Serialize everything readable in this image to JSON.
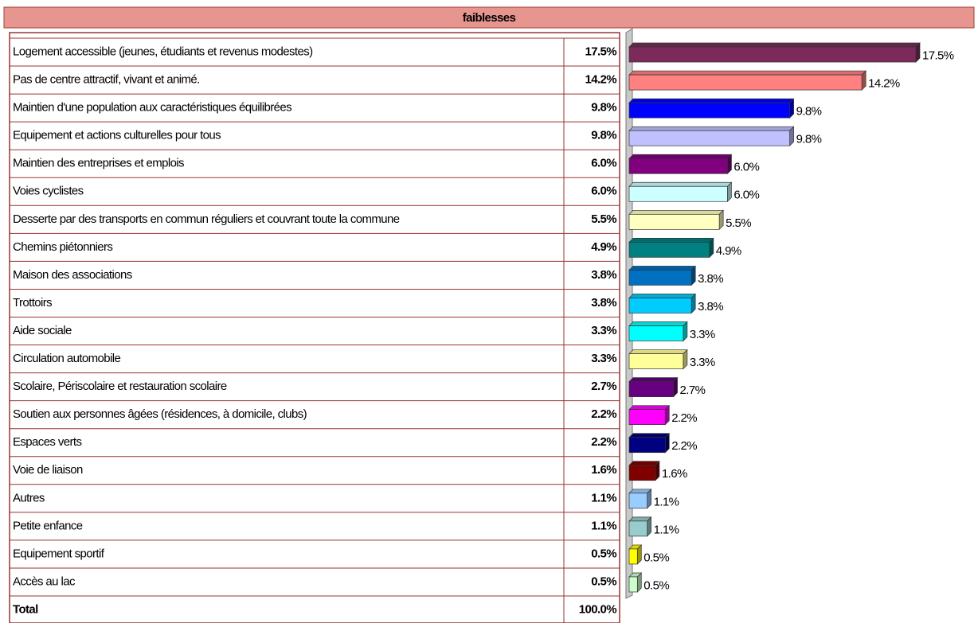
{
  "chart_data": {
    "type": "bar",
    "orientation": "horizontal",
    "title": "faiblesses",
    "categories": [
      "Logement accessible (jeunes, étudiants et revenus modestes)",
      "Pas de  centre attractif, vivant et animé.",
      "Maintien d'une population aux caractéristiques équilibrées",
      "Equipement et actions culturelles pour tous",
      "Maintien des entreprises et emplois",
      "Voies cyclistes",
      "Desserte par des transports en commun réguliers et couvrant toute la commune",
      "Chemins piétonniers",
      "Maison des associations",
      "Trottoirs",
      "Aide sociale",
      "Circulation automobile",
      "Scolaire, Périscolaire et restauration scolaire",
      "Soutien aux personnes âgées (résidences, à domicile, clubs)",
      "Espaces verts",
      "Voie de liaison",
      "Autres",
      "Petite enfance",
      "Equipement sportif",
      "Accès au lac"
    ],
    "values": [
      17.5,
      14.2,
      9.8,
      9.8,
      6.0,
      6.0,
      5.5,
      4.9,
      3.8,
      3.8,
      3.3,
      3.3,
      2.7,
      2.2,
      2.2,
      1.6,
      1.1,
      1.1,
      0.5,
      0.5
    ],
    "value_labels": [
      "17.5%",
      "14.2%",
      "9.8%",
      "9.8%",
      "6.0%",
      "6.0%",
      "5.5%",
      "4.9%",
      "3.8%",
      "3.8%",
      "3.3%",
      "3.3%",
      "2.7%",
      "2.2%",
      "2.2%",
      "1.6%",
      "1.1%",
      "1.1%",
      "0.5%",
      "0.5%"
    ],
    "colors": [
      "#7b2a5a",
      "#ff8080",
      "#0000ff",
      "#c0c0ff",
      "#800080",
      "#ccffff",
      "#ffffc0",
      "#008080",
      "#0070c0",
      "#00ccff",
      "#00ffff",
      "#ffff99",
      "#660080",
      "#ff00ff",
      "#000080",
      "#800000",
      "#99ccff",
      "#99cccc",
      "#ffff00",
      "#ccffcc"
    ],
    "total": {
      "label": "Total",
      "value": 100.0,
      "value_label": "100.0%"
    }
  }
}
